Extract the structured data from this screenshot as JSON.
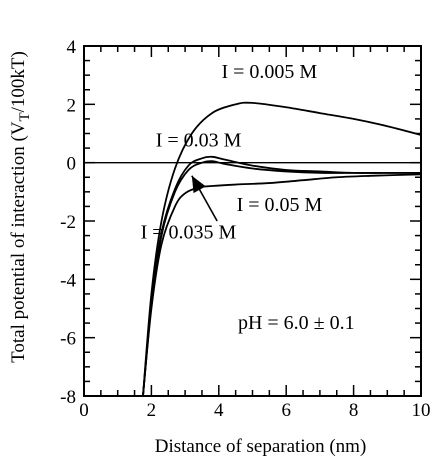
{
  "chart_data": {
    "type": "line",
    "title": "",
    "xlabel": "Distance of separation (nm)",
    "ylabel_main": "Total potential of interaction (V",
    "ylabel_sub": "T",
    "ylabel_tail": "/100kT)",
    "xlim": [
      0,
      10
    ],
    "ylim": [
      -8,
      4
    ],
    "x_ticks": [
      0,
      2,
      4,
      6,
      8,
      10
    ],
    "y_ticks": [
      4,
      2,
      0,
      -2,
      -4,
      -6,
      -8
    ],
    "x_tick_labels": [
      "0",
      "2",
      "4",
      "6",
      "8",
      "10"
    ],
    "y_tick_labels": [
      "4",
      "2",
      "0",
      "-2",
      "-4",
      "-6",
      "-8"
    ],
    "grid": false,
    "reference_line_y": 0,
    "series": [
      {
        "label_text": "I = 0.005 M",
        "x": [
          1.75,
          2.0,
          2.3,
          2.7,
          3.2,
          3.8,
          4.5,
          5.0,
          6.0,
          7.0,
          8.0,
          9.0,
          10.0
        ],
        "y": [
          -8.0,
          -4.5,
          -2.0,
          -0.2,
          1.0,
          1.7,
          2.0,
          2.05,
          1.9,
          1.7,
          1.5,
          1.25,
          0.95
        ]
      },
      {
        "label_text": "I = 0.03 M",
        "x": [
          1.75,
          2.0,
          2.3,
          2.7,
          3.1,
          3.5,
          3.8,
          4.2,
          5.0,
          6.0,
          7.0,
          8.0,
          9.0,
          10.0
        ],
        "y": [
          -8.0,
          -4.8,
          -2.4,
          -0.9,
          -0.1,
          0.15,
          0.2,
          0.1,
          -0.1,
          -0.25,
          -0.3,
          -0.35,
          -0.35,
          -0.35
        ]
      },
      {
        "label_text": "I = 0.035 M",
        "x": [
          1.75,
          2.0,
          2.3,
          2.7,
          3.1,
          3.5,
          3.8,
          4.2,
          5.0,
          6.0,
          7.0,
          8.0,
          9.0,
          10.0
        ],
        "y": [
          -8.0,
          -4.9,
          -2.5,
          -1.0,
          -0.25,
          0.0,
          0.05,
          -0.05,
          -0.2,
          -0.3,
          -0.35,
          -0.35,
          -0.35,
          -0.35
        ]
      },
      {
        "label_text": "I = 0.05 M",
        "x": [
          1.75,
          2.0,
          2.3,
          2.7,
          3.0,
          3.4,
          3.8,
          4.5,
          5.5,
          6.5,
          7.5,
          8.5,
          10.0
        ],
        "y": [
          -8.0,
          -5.0,
          -2.8,
          -1.5,
          -1.05,
          -0.85,
          -0.8,
          -0.75,
          -0.7,
          -0.6,
          -0.5,
          -0.45,
          -0.4
        ]
      }
    ],
    "annotations": [
      {
        "text": "I = 0.005 M",
        "x": 5.5,
        "y": 2.9
      },
      {
        "text": "I = 0.03 M",
        "x": 3.4,
        "y": 0.55
      },
      {
        "text": "I = 0.05 M",
        "x": 5.8,
        "y": -1.65
      },
      {
        "text": "I = 0.035 M",
        "x": 3.1,
        "y": -2.6
      },
      {
        "text": "pH = 6.0 ± 0.1",
        "x": 6.3,
        "y": -5.7
      }
    ],
    "arrow": {
      "from": [
        3.95,
        -2.0
      ],
      "to": [
        3.2,
        -0.45
      ]
    }
  }
}
